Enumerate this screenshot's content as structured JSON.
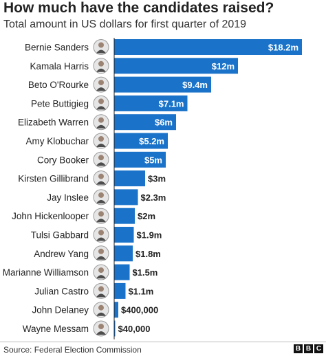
{
  "header": {
    "title": "How much have the candidates raised?",
    "subtitle": "Total amount in US dollars for first quarter of 2019"
  },
  "footer": {
    "source": "Source: Federal Election Commission",
    "logo": [
      "B",
      "B",
      "C"
    ]
  },
  "colors": {
    "bar": "#1a73c9",
    "label_inside": "#ffffff",
    "label_outside": "#222222",
    "axis": "#222222"
  },
  "chart_data": {
    "type": "bar",
    "orientation": "horizontal",
    "categories": [
      "Bernie Sanders",
      "Kamala Harris",
      "Beto O'Rourke",
      "Pete Buttigieg",
      "Elizabeth Warren",
      "Amy Klobuchar",
      "Cory Booker",
      "Kirsten Gillibrand",
      "Jay Inslee",
      "John Hickenlooper",
      "Tulsi Gabbard",
      "Andrew Yang",
      "Marianne Williamson",
      "Julian Castro",
      "John Delaney",
      "Wayne Messam"
    ],
    "values": [
      18.2,
      12,
      9.4,
      7.1,
      6,
      5.2,
      5,
      3,
      2.3,
      2,
      1.9,
      1.8,
      1.5,
      1.1,
      0.4,
      0.04
    ],
    "labels": [
      "$18.2m",
      "$12m",
      "$9.4m",
      "$7.1m",
      "$6m",
      "$5.2m",
      "$5m",
      "$3m",
      "$2.3m",
      "$2m",
      "$1.9m",
      "$1.8m",
      "$1.5m",
      "$1.1m",
      "$400,000",
      "$40,000"
    ],
    "unit": "million US dollars",
    "xlim": [
      0,
      18.2
    ],
    "grid": false,
    "legend": "none"
  }
}
